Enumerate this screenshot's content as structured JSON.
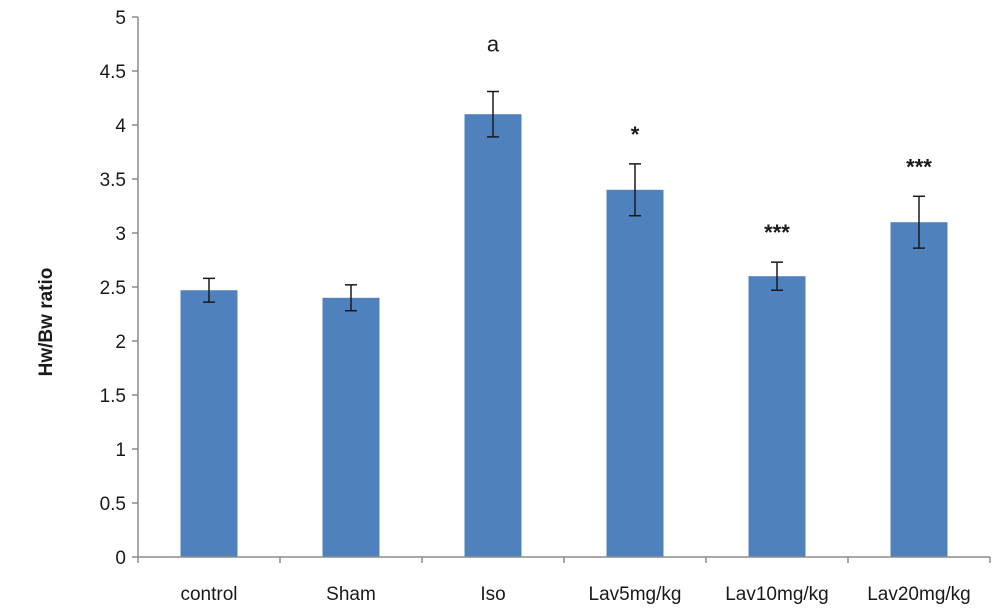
{
  "chart_data": {
    "type": "bar",
    "title": "",
    "xlabel": "",
    "ylabel": "Hw/Bw ratio",
    "ylim": [
      0,
      5
    ],
    "yticks": [
      "0",
      "0.5",
      "1",
      "1.5",
      "2",
      "2.5",
      "3",
      "3.5",
      "4",
      "4.5",
      "5"
    ],
    "grid": false,
    "bar_color": "#4f81bd",
    "categories": [
      "control",
      "Sham",
      "Iso",
      "Lav5mg/kg",
      "Lav10mg/kg",
      "Lav20mg/kg"
    ],
    "values": [
      2.47,
      2.4,
      4.1,
      3.4,
      2.6,
      3.1
    ],
    "error": [
      0.11,
      0.12,
      0.21,
      0.24,
      0.13,
      0.24
    ],
    "annotations": [
      "",
      "",
      "a",
      "*",
      "***",
      "***"
    ]
  }
}
